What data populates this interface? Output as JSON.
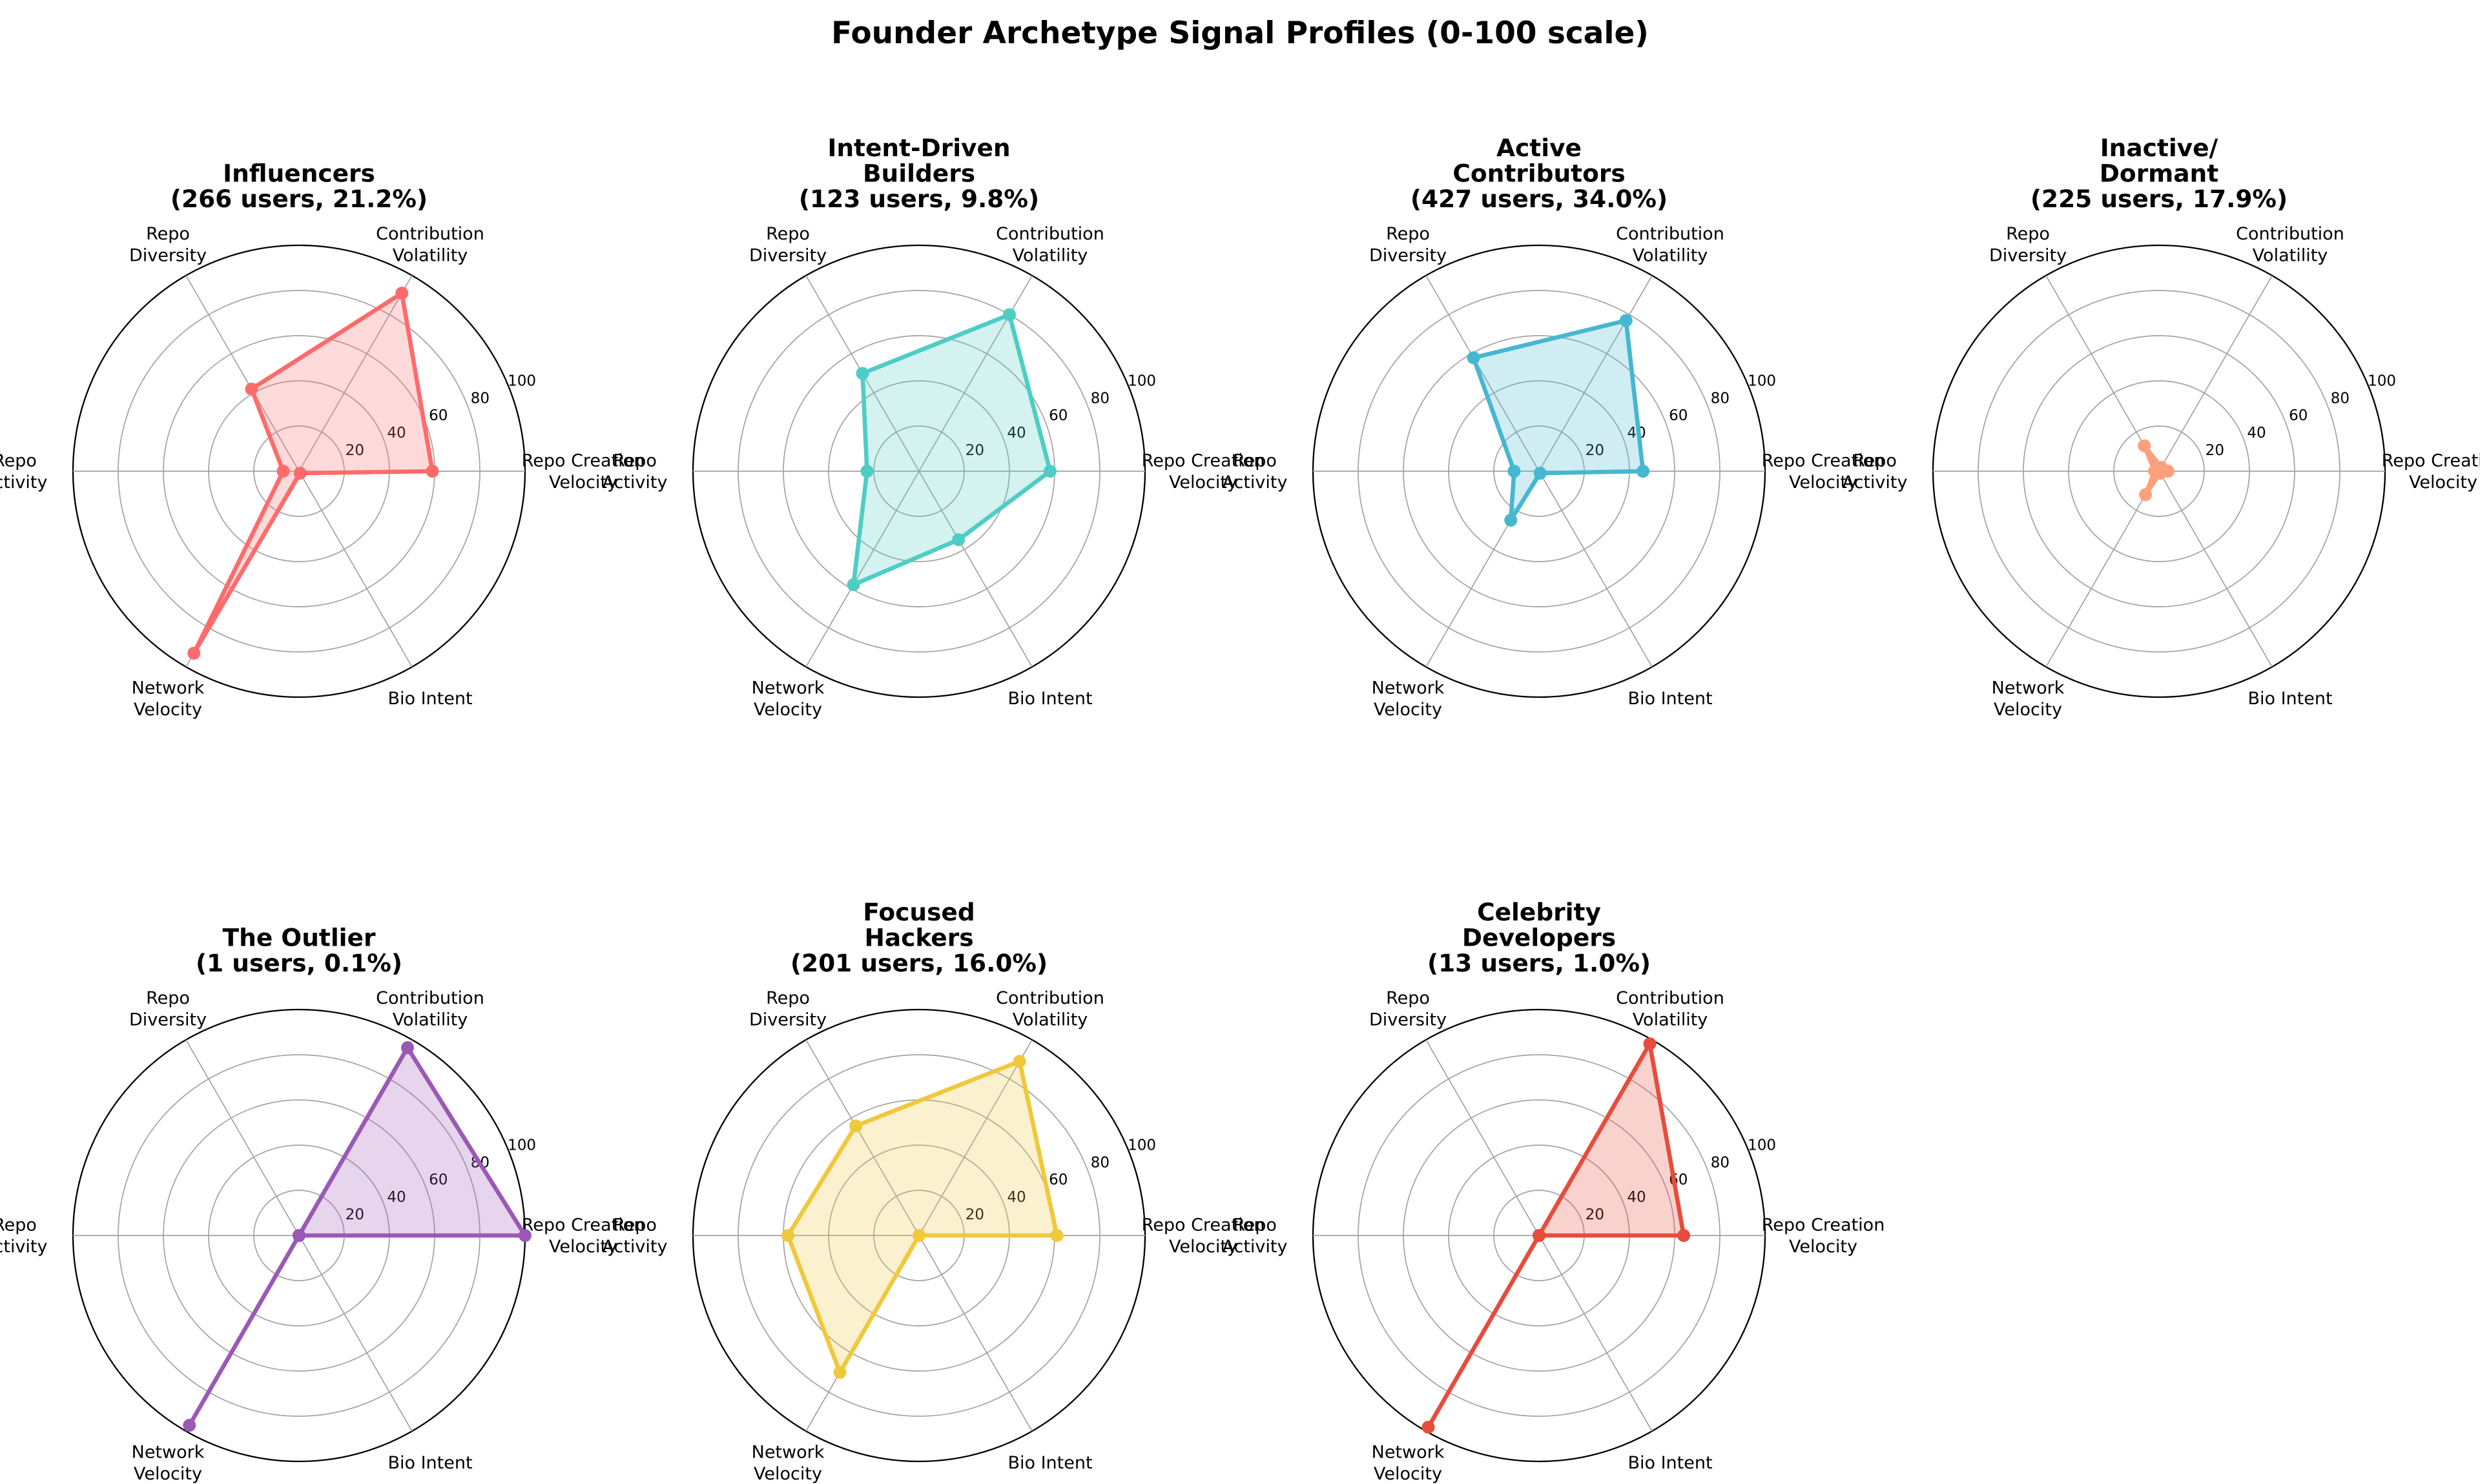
{
  "title": "Founder Archetype Signal Profiles (0-100 scale)",
  "colors": {
    "background": "#ffffff",
    "grid": "#a3a3a3",
    "outer_ring": "#000000",
    "text": "#000000"
  },
  "chart_data": {
    "type": "radar",
    "scale_min": 0,
    "scale_max": 100,
    "radial_ticks": [
      20,
      40,
      60,
      80,
      100
    ],
    "tick_label_angle_deg": 22.5,
    "grid": true,
    "legend_position": "none",
    "axes": [
      {
        "key": "repo_creation_velocity",
        "label_lines": [
          "Repo Creation",
          "Velocity"
        ],
        "angle_deg": 0
      },
      {
        "key": "contribution_volatility",
        "label_lines": [
          "Contribution",
          "Volatility"
        ],
        "angle_deg": 60
      },
      {
        "key": "repo_diversity",
        "label_lines": [
          "Repo",
          "Diversity"
        ],
        "angle_deg": 120
      },
      {
        "key": "repo_activity",
        "label_lines": [
          "Repo",
          "Activity"
        ],
        "angle_deg": 180
      },
      {
        "key": "network_velocity",
        "label_lines": [
          "Network",
          "Velocity"
        ],
        "angle_deg": 240
      },
      {
        "key": "bio_intent",
        "label_lines": [
          "Bio Intent"
        ],
        "angle_deg": 300
      }
    ],
    "series": [
      {
        "name": "Influencers",
        "name_lines": [
          "Influencers"
        ],
        "stats": "(266 users, 21.2%)",
        "users": 266,
        "percent": 21.2,
        "color": "#FF6B6B",
        "row": 0,
        "col": 0,
        "values": {
          "repo_creation_velocity": 59,
          "contribution_volatility": 91,
          "repo_diversity": 42,
          "repo_activity": 7,
          "network_velocity": 93,
          "bio_intent": 1
        }
      },
      {
        "name": "Intent-Driven Builders",
        "name_lines": [
          "Intent-Driven",
          "Builders"
        ],
        "stats": "(123 users, 9.8%)",
        "users": 123,
        "percent": 9.8,
        "color": "#4ECDC4",
        "row": 0,
        "col": 1,
        "values": {
          "repo_creation_velocity": 58,
          "contribution_volatility": 80,
          "repo_diversity": 50,
          "repo_activity": 23,
          "network_velocity": 58,
          "bio_intent": 35
        }
      },
      {
        "name": "Active Contributors",
        "name_lines": [
          "Active",
          "Contributors"
        ],
        "stats": "(427 users, 34.0%)",
        "users": 427,
        "percent": 34.0,
        "color": "#45B7D1",
        "row": 0,
        "col": 2,
        "values": {
          "repo_creation_velocity": 46,
          "contribution_volatility": 77,
          "repo_diversity": 58,
          "repo_activity": 11,
          "network_velocity": 25,
          "bio_intent": 1
        }
      },
      {
        "name": "Inactive/Dormant",
        "name_lines": [
          "Inactive/",
          "Dormant"
        ],
        "stats": "(225 users, 17.9%)",
        "users": 225,
        "percent": 17.9,
        "color": "#FFA07A",
        "row": 0,
        "col": 3,
        "values": {
          "repo_creation_velocity": 4,
          "contribution_volatility": 2,
          "repo_diversity": 13,
          "repo_activity": 2,
          "network_velocity": 12,
          "bio_intent": 1
        }
      },
      {
        "name": "The Outlier",
        "name_lines": [
          "The Outlier"
        ],
        "stats": "(1 users, 0.1%)",
        "users": 1,
        "percent": 0.1,
        "color": "#9B59B6",
        "row": 1,
        "col": 0,
        "values": {
          "repo_creation_velocity": 100,
          "contribution_volatility": 96,
          "repo_diversity": 0,
          "repo_activity": 0,
          "network_velocity": 97,
          "bio_intent": 0
        }
      },
      {
        "name": "Focused Hackers",
        "name_lines": [
          "Focused",
          "Hackers"
        ],
        "stats": "(201 users, 16.0%)",
        "users": 201,
        "percent": 16.0,
        "color": "#F0C83C",
        "row": 1,
        "col": 1,
        "values": {
          "repo_creation_velocity": 61,
          "contribution_volatility": 89,
          "repo_diversity": 56,
          "repo_activity": 58,
          "network_velocity": 70,
          "bio_intent": 0
        }
      },
      {
        "name": "Celebrity Developers",
        "name_lines": [
          "Celebrity",
          "Developers"
        ],
        "stats": "(13 users, 1.0%)",
        "users": 13,
        "percent": 1.0,
        "color": "#E74C3C",
        "row": 1,
        "col": 2,
        "values": {
          "repo_creation_velocity": 64,
          "contribution_volatility": 98,
          "repo_diversity": 0,
          "repo_activity": 0,
          "network_velocity": 98,
          "bio_intent": 0
        }
      }
    ]
  }
}
